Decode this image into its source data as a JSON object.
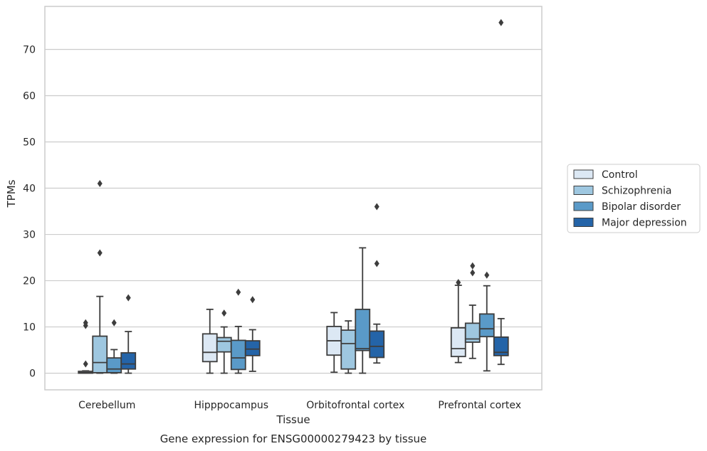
{
  "chart_data": {
    "type": "box",
    "caption": "Gene expression for ENSG00000279423 by tissue",
    "xlabel": "Tissue",
    "ylabel": "TPMs",
    "ylim": [
      -3.6,
      79.3
    ],
    "yticks": [
      0,
      10,
      20,
      30,
      40,
      50,
      60,
      70
    ],
    "grid": "horizontal",
    "legend_position": "right",
    "categories": [
      "Cerebellum",
      "Hipppocampus",
      "Orbitofrontal cortex",
      "Prefrontal cortex"
    ],
    "series": [
      {
        "name": "Control",
        "color": "#dce8f4",
        "boxes": [
          {
            "whislo": 0,
            "q1": 0,
            "med": 0.1,
            "q3": 0.4,
            "whishi": 0.5,
            "fliers": [
              2,
              10.3,
              10.9
            ]
          },
          {
            "whislo": 0,
            "q1": 2.5,
            "med": 4.5,
            "q3": 8.5,
            "whishi": 13.8,
            "fliers": []
          },
          {
            "whislo": 0.2,
            "q1": 3.9,
            "med": 7,
            "q3": 10.1,
            "whishi": 13.1,
            "fliers": []
          },
          {
            "whislo": 2.3,
            "q1": 3.6,
            "med": 5.3,
            "q3": 9.8,
            "whishi": 19,
            "fliers": [
              19.6
            ]
          }
        ]
      },
      {
        "name": "Schizophrenia",
        "color": "#9ec7e0",
        "boxes": [
          {
            "whislo": 0,
            "q1": 0.1,
            "med": 2.3,
            "q3": 8,
            "whishi": 16.6,
            "fliers": [
              26,
              41
            ]
          },
          {
            "whislo": 0,
            "q1": 4.6,
            "med": 6.9,
            "q3": 7.7,
            "whishi": 10,
            "fliers": [
              13
            ]
          },
          {
            "whislo": 0,
            "q1": 0.9,
            "med": 6.4,
            "q3": 9.3,
            "whishi": 11.3,
            "fliers": []
          },
          {
            "whislo": 3.2,
            "q1": 6.7,
            "med": 7.4,
            "q3": 10.8,
            "whishi": 14.7,
            "fliers": [
              21.7,
              23.2
            ]
          }
        ]
      },
      {
        "name": "Bipolar disorder",
        "color": "#5a9ac8",
        "boxes": [
          {
            "whislo": 0,
            "q1": 0.1,
            "med": 0.9,
            "q3": 3.3,
            "whishi": 5.1,
            "fliers": [
              10.9
            ]
          },
          {
            "whislo": 0,
            "q1": 0.8,
            "med": 3.3,
            "q3": 7.1,
            "whishi": 10.1,
            "fliers": [
              17.5
            ]
          },
          {
            "whislo": 0,
            "q1": 4.9,
            "med": 5.3,
            "q3": 13.8,
            "whishi": 27.1,
            "fliers": []
          },
          {
            "whislo": 0.5,
            "q1": 7.9,
            "med": 9.6,
            "q3": 12.8,
            "whishi": 18.9,
            "fliers": [
              21.2
            ]
          }
        ]
      },
      {
        "name": "Major depression",
        "color": "#2464a8",
        "boxes": [
          {
            "whislo": 0,
            "q1": 0.9,
            "med": 2,
            "q3": 4.4,
            "whishi": 9,
            "fliers": [
              16.3
            ]
          },
          {
            "whislo": 0.4,
            "q1": 3.8,
            "med": 5.2,
            "q3": 7,
            "whishi": 9.4,
            "fliers": [
              15.9
            ]
          },
          {
            "whislo": 2.2,
            "q1": 3.4,
            "med": 5.8,
            "q3": 9.1,
            "whishi": 10.6,
            "fliers": [
              23.7,
              36
            ]
          },
          {
            "whislo": 1.9,
            "q1": 3.8,
            "med": 4.5,
            "q3": 7.8,
            "whishi": 11.8,
            "fliers": [
              75.8
            ]
          }
        ]
      }
    ]
  }
}
